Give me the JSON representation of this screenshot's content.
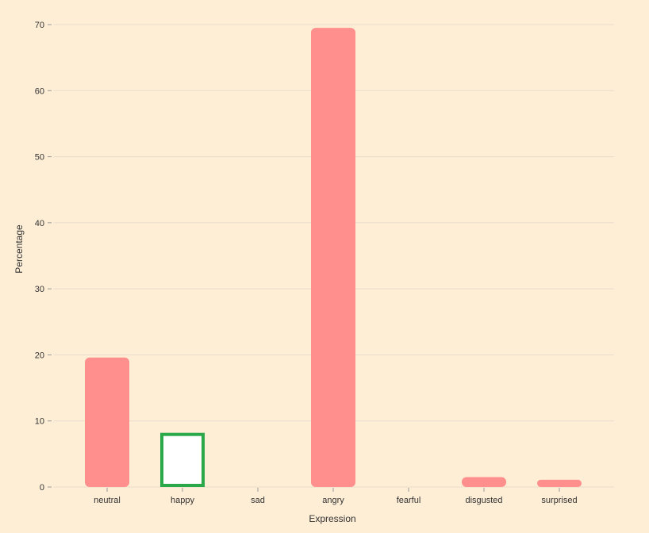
{
  "chart_data": {
    "type": "bar",
    "categories": [
      "neutral",
      "happy",
      "sad",
      "angry",
      "fearful",
      "disgusted",
      "surprised"
    ],
    "values": [
      19.6,
      8.2,
      0,
      69.5,
      0,
      1.5,
      1.1
    ],
    "selected_category": "happy",
    "xlabel": "Expression",
    "ylabel": "Percentage",
    "ylim": [
      0,
      70
    ],
    "yticks": [
      "0",
      "10",
      "20",
      "30",
      "40",
      "50",
      "60",
      "70"
    ],
    "grid": "horizontal",
    "colors": {
      "bar": "#ff8f8d",
      "selected_fill": "#ffffff",
      "selected_stroke": "#2aa84a",
      "grid": "#e8dccb",
      "tick": "#999999",
      "background": "#feeed6"
    }
  }
}
